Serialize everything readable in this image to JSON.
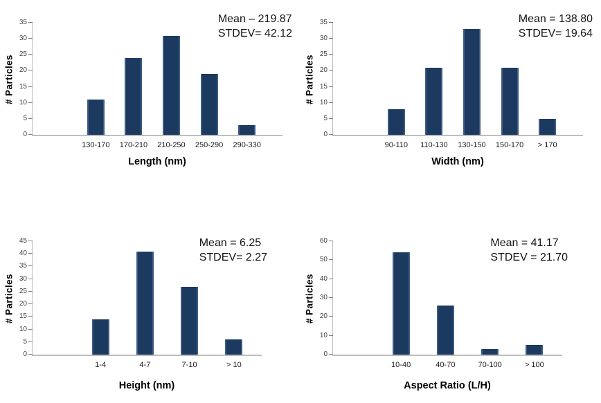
{
  "figure": {
    "background": "#ffffff",
    "bar_color": "#1C3A60",
    "bar_edge_color": "#3E5B84",
    "axis_color": "#BDBDBD",
    "tick_color": "#7F7F7F",
    "tick_label_color": "#404040",
    "text_color": "#000000"
  },
  "chart_data": [
    {
      "id": "length-histogram",
      "type": "bar",
      "title": "",
      "categories": [
        "130-170",
        "170-210",
        "210-250",
        "250-290",
        "290-330"
      ],
      "values": [
        11,
        24,
        31,
        19,
        3
      ],
      "xlabel": "Length (nm)",
      "ylabel": "# Particles",
      "ylim": [
        0,
        35
      ],
      "ytick_step": 5,
      "grid": false,
      "legend": "none",
      "annotation": [
        "Mean – 219.87",
        "STDEV= 42.12"
      ]
    },
    {
      "id": "width-histogram",
      "type": "bar",
      "title": "",
      "categories": [
        "90-110",
        "110-130",
        "130-150",
        "150-170",
        "> 170"
      ],
      "values": [
        8,
        21,
        33,
        21,
        5
      ],
      "xlabel": "Width (nm)",
      "ylabel": "# Particles",
      "ylim": [
        0,
        35
      ],
      "ytick_step": 5,
      "grid": false,
      "legend": "none",
      "annotation": [
        "Mean = 138.80",
        "STDEV= 19.64"
      ]
    },
    {
      "id": "height-histogram",
      "type": "bar",
      "title": "",
      "categories": [
        "1-4",
        "4-7",
        "7-10",
        "> 10"
      ],
      "values": [
        14,
        41,
        27,
        6
      ],
      "xlabel": "Height (nm)",
      "ylabel": "# Particles",
      "ylim": [
        0,
        45
      ],
      "ytick_step": 5,
      "grid": false,
      "legend": "none",
      "annotation": [
        "Mean = 6.25",
        "STDEV= 2.27"
      ]
    },
    {
      "id": "aspect-ratio-histogram",
      "type": "bar",
      "title": "",
      "categories": [
        "10-40",
        "40-70",
        "70-100",
        "> 100"
      ],
      "values": [
        54,
        26,
        3,
        5
      ],
      "xlabel": "Aspect Ratio (L/H)",
      "ylabel": "# Particles",
      "ylim": [
        0,
        60
      ],
      "ytick_step": 10,
      "grid": false,
      "legend": "none",
      "annotation": [
        "Mean = 41.17",
        "STDEV = 21.70"
      ]
    }
  ]
}
